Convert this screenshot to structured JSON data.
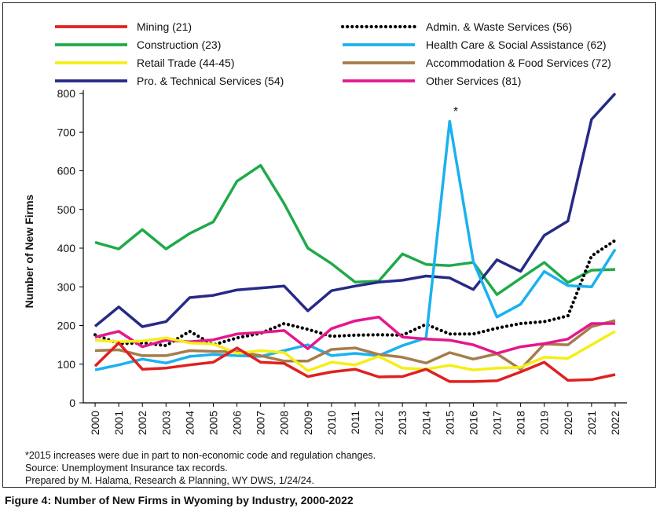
{
  "chart_data": {
    "type": "line",
    "title": "Figure 4: Number of New Firms in Wyoming by Industry, 2000-2022",
    "ylabel": "Number of New Firms",
    "xlabel": "",
    "ylim": [
      0,
      800
    ],
    "yticks": [
      0,
      100,
      200,
      300,
      400,
      500,
      600,
      700,
      800
    ],
    "x": [
      "2000",
      "2001",
      "2002",
      "2003",
      "2004",
      "2005",
      "2006",
      "2007",
      "2008",
      "2009",
      "2010",
      "2011",
      "2012",
      "2013",
      "2014",
      "2015",
      "2016",
      "2017",
      "2018",
      "2019",
      "2020",
      "2021",
      "2022"
    ],
    "grid": false,
    "legend_position": "top",
    "annotation": "*",
    "series": [
      {
        "name": "Mining (21)",
        "color": "#e02020",
        "dash": false,
        "values": [
          95,
          155,
          87,
          90,
          98,
          105,
          142,
          105,
          102,
          68,
          80,
          87,
          67,
          68,
          87,
          55,
          55,
          57,
          80,
          105,
          58,
          60,
          73
        ]
      },
      {
        "name": "Admin. & Waste Services (56)",
        "color": "#000000",
        "dash": true,
        "values": [
          176,
          153,
          155,
          148,
          185,
          150,
          168,
          180,
          205,
          190,
          172,
          175,
          176,
          175,
          203,
          178,
          178,
          193,
          205,
          210,
          225,
          380,
          420
        ]
      },
      {
        "name": "Construction (23)",
        "color": "#1faa4a",
        "dash": false,
        "values": [
          415,
          398,
          448,
          398,
          438,
          468,
          573,
          614,
          515,
          400,
          360,
          312,
          315,
          385,
          358,
          355,
          363,
          280,
          322,
          363,
          311,
          343,
          345
        ]
      },
      {
        "name": "Health Care & Social Assistance (62)",
        "color": "#1ab2ee",
        "dash": false,
        "values": [
          85,
          98,
          113,
          103,
          120,
          125,
          122,
          120,
          135,
          150,
          122,
          128,
          122,
          148,
          168,
          728,
          365,
          222,
          255,
          340,
          303,
          300,
          397
        ]
      },
      {
        "name": "Retail Trade (44-45)",
        "color": "#f5ee16",
        "dash": false,
        "values": [
          162,
          158,
          160,
          168,
          155,
          152,
          128,
          135,
          130,
          83,
          105,
          98,
          120,
          90,
          87,
          97,
          85,
          90,
          92,
          118,
          115,
          150,
          185
        ]
      },
      {
        "name": "Accommodation & Food Services (72)",
        "color": "#a57d4c",
        "dash": false,
        "values": [
          135,
          137,
          122,
          122,
          135,
          133,
          132,
          122,
          108,
          108,
          138,
          142,
          125,
          118,
          103,
          130,
          113,
          127,
          87,
          152,
          150,
          197,
          213
        ]
      },
      {
        "name": "Pro. & Technical Services (54)",
        "color": "#262a86",
        "dash": false,
        "values": [
          198,
          248,
          197,
          210,
          272,
          278,
          292,
          297,
          302,
          238,
          290,
          302,
          312,
          317,
          328,
          323,
          293,
          370,
          340,
          433,
          470,
          733,
          800
        ]
      },
      {
        "name": "Other Services (81)",
        "color": "#e5178d",
        "dash": false,
        "values": [
          170,
          185,
          145,
          162,
          158,
          163,
          178,
          182,
          187,
          140,
          192,
          212,
          222,
          170,
          165,
          162,
          150,
          128,
          145,
          153,
          165,
          205,
          205
        ]
      }
    ]
  },
  "notes": {
    "note1": "*2015 increases were due in part to non-economic code and regulation changes.",
    "note2": "Source: Unemployment Insurance tax records.",
    "note3": "Prepared by M. Halama, Research & Planning, WY DWS, 1/24/24."
  }
}
